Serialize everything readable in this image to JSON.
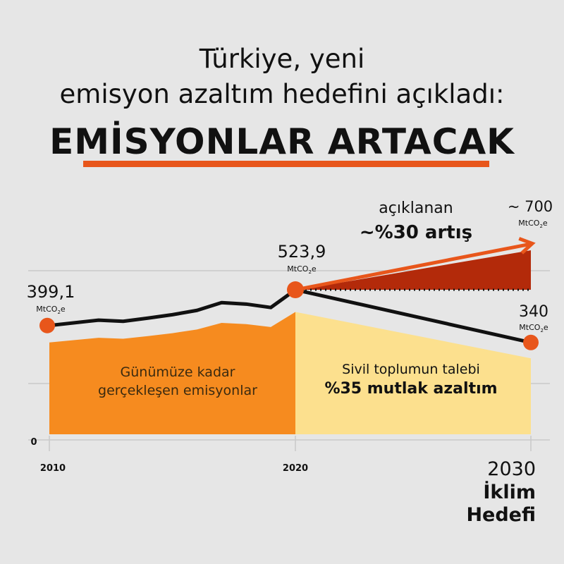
{
  "header": {
    "line1": "Türkiye, yeni",
    "line2": "emisyon azaltım hedefini açıkladı:",
    "line3": "EMİSYONLAR ARTACAK"
  },
  "colors": {
    "historical_fill": "#f68b1f",
    "demand_fill": "#fce08e",
    "increase_fill": "#b32a0a",
    "arrow": "#e8561b",
    "line": "#111111",
    "point": "#e8561b",
    "underline": "#e8561b"
  },
  "chart_data": {
    "type": "line",
    "x_ticks": [
      "2010",
      "2020"
    ],
    "y_tick": "0",
    "historical": {
      "x": [
        2010,
        2012,
        2013,
        2014,
        2015,
        2016,
        2017,
        2018,
        2019,
        2020
      ],
      "y": [
        399.1,
        418,
        414,
        425,
        437,
        452,
        479,
        474,
        462,
        523.9
      ],
      "label_line1": "Günümüze kadar",
      "label_line2": "gerçekleşen emisyonlar"
    },
    "announced": {
      "x": [
        2020,
        2030
      ],
      "y": [
        523.9,
        700
      ],
      "label_line1": "açıklanan",
      "label_line2": "~%30 artış"
    },
    "civil_society_demand": {
      "x": [
        2020,
        2030
      ],
      "y": [
        523.9,
        340
      ],
      "label_line1": "Sivil toplumun talebi",
      "label_line2": "%35 mutlak azaltım"
    },
    "point_labels": {
      "p2010_value": "399,1",
      "p2020_value": "523,9",
      "p2030_high_value": "~ 700",
      "p2030_low_value": "340",
      "unit_main": "MtCO",
      "unit_sub": "2",
      "unit_end": "e"
    },
    "ylim": [
      0,
      720
    ]
  },
  "footer": {
    "year": "2030",
    "line2": "İklim",
    "line3": "Hedefi"
  }
}
